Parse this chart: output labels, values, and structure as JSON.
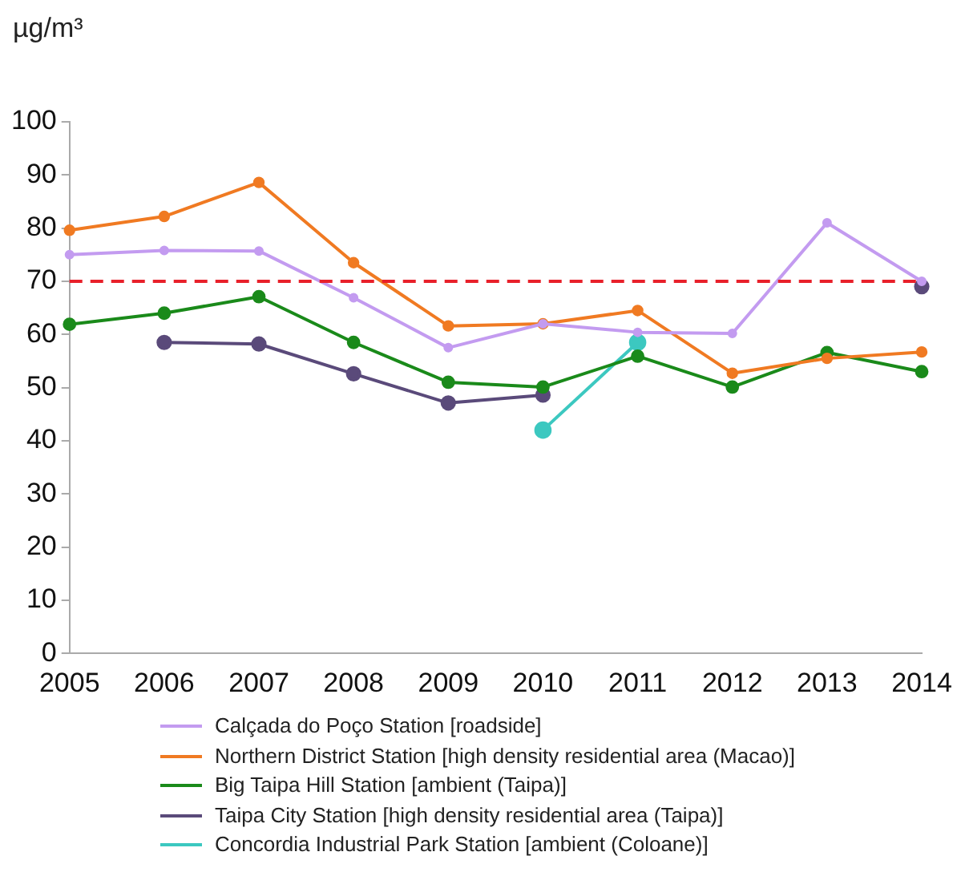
{
  "chart_data": {
    "type": "line",
    "ylabel": "µg/m³",
    "categories": [
      "2005",
      "2006",
      "2007",
      "2008",
      "2009",
      "2010",
      "2011",
      "2012",
      "2013",
      "2014"
    ],
    "series": [
      {
        "name": "Calçada do Poço Station [roadside]",
        "color": "#c39bf0",
        "values": [
          75,
          75.8,
          75.7,
          66.9,
          57.5,
          62,
          60.4,
          60.2,
          81,
          70
        ]
      },
      {
        "name": "Northern District Station [high density residential area (Macao)]",
        "color": "#f07a22",
        "values": [
          79.6,
          82.2,
          88.6,
          73.5,
          61.6,
          62,
          64.5,
          52.7,
          55.5,
          56.7
        ]
      },
      {
        "name": "Big Taipa Hill Station [ambient (Taipa)]",
        "color": "#1a8a1a",
        "values": [
          61.9,
          64,
          67.1,
          58.5,
          51,
          50.1,
          55.9,
          50.1,
          56.6,
          53
        ]
      },
      {
        "name": "Taipa City Station [high density residential area (Taipa)]",
        "color": "#5a4a7a",
        "values": [
          null,
          58.5,
          58.2,
          52.6,
          47.1,
          48.6,
          null,
          null,
          null,
          69
        ]
      },
      {
        "name": "Concordia Industrial Park Station [ambient (Coloane)]",
        "color": "#3cc8c0",
        "values": [
          null,
          null,
          null,
          null,
          null,
          42,
          58.5,
          null,
          null,
          null
        ]
      }
    ],
    "ylim": [
      0,
      100
    ],
    "yticks": [
      0,
      10,
      20,
      30,
      40,
      50,
      60,
      70,
      80,
      90,
      100
    ],
    "grid": false,
    "legend": "bottom",
    "marker": "circle",
    "line_style": "solid",
    "ref_lines": [
      {
        "axis": "y",
        "value": 70,
        "color": "#e8202a",
        "line_style": "dashed"
      }
    ]
  }
}
